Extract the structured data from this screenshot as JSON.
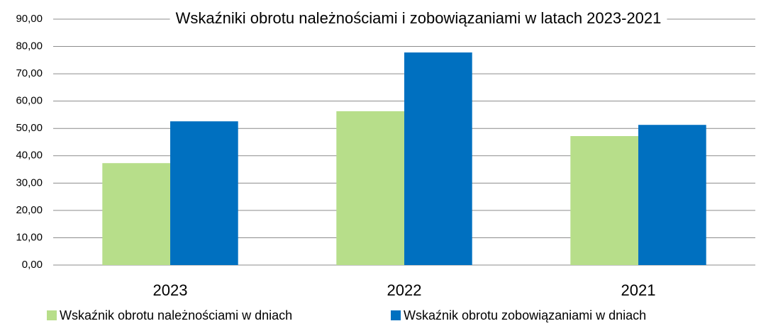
{
  "chart_data": {
    "type": "bar",
    "title": "Wskaźniki obrotu należnościami i zobowiązaniami  w latach 2023-2021",
    "categories": [
      "2023",
      "2022",
      "2021"
    ],
    "series": [
      {
        "name": "Wskaźnik obrotu należnościami  w dniach",
        "color": "#b7de8a",
        "values": [
          37.3,
          56.3,
          47.2
        ]
      },
      {
        "name": "Wskaźnik obrotu zobowiązaniami w dniach",
        "color": "#0070c0",
        "values": [
          52.6,
          77.8,
          51.3
        ]
      }
    ],
    "ylim": [
      0,
      90
    ],
    "yticks": [
      {
        "value": 0,
        "label": "0,00"
      },
      {
        "value": 10,
        "label": "10,00"
      },
      {
        "value": 20,
        "label": "20,00"
      },
      {
        "value": 30,
        "label": "30,00"
      },
      {
        "value": 40,
        "label": "40,00"
      },
      {
        "value": 50,
        "label": "50,00"
      },
      {
        "value": 60,
        "label": "60,00"
      },
      {
        "value": 70,
        "label": "70,00"
      },
      {
        "value": 80,
        "label": "80,00"
      },
      {
        "value": 90,
        "label": "90,00"
      }
    ],
    "grid": true,
    "legend": "bottom"
  }
}
